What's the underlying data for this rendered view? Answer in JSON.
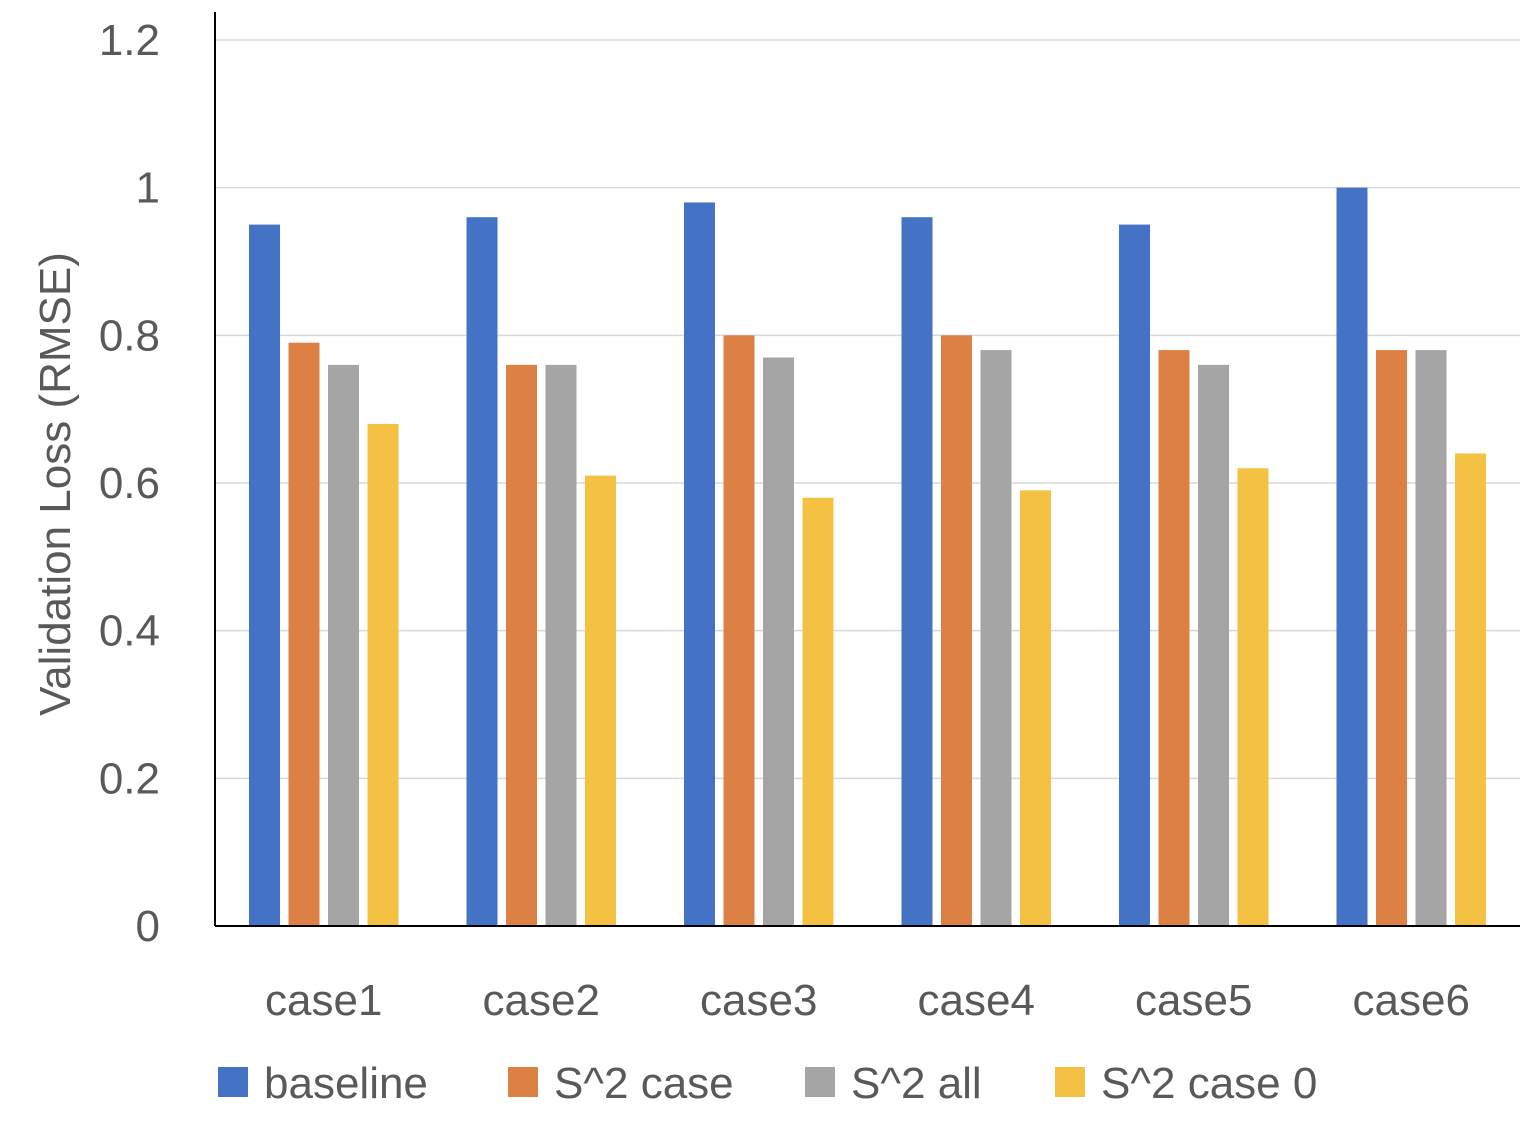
{
  "chart_data": {
    "type": "bar",
    "title": "",
    "xlabel": "",
    "ylabel": "Validation Loss (RMSE)",
    "ylim": [
      0,
      1.2
    ],
    "yticks": [
      0,
      0.2,
      0.4,
      0.6,
      0.8,
      1,
      1.2
    ],
    "ytick_labels": [
      "0",
      "0.2",
      "0.4",
      "0.6",
      "0.8",
      "1",
      "1.2"
    ],
    "grid": true,
    "legend_position": "bottom",
    "categories": [
      "case1",
      "case2",
      "case3",
      "case4",
      "case5",
      "case6"
    ],
    "series": [
      {
        "name": "baseline",
        "color": "#4472c4",
        "values": [
          0.95,
          0.96,
          0.98,
          0.96,
          0.95,
          1.0
        ]
      },
      {
        "name": "S^2 case",
        "color": "#dd8044",
        "values": [
          0.79,
          0.76,
          0.8,
          0.8,
          0.78,
          0.78
        ]
      },
      {
        "name": "S^2 all",
        "color": "#a5a5a5",
        "values": [
          0.76,
          0.76,
          0.77,
          0.78,
          0.76,
          0.78
        ]
      },
      {
        "name": "S^2 case 0",
        "color": "#f5c143",
        "values": [
          0.68,
          0.61,
          0.58,
          0.59,
          0.62,
          0.64
        ]
      }
    ]
  }
}
